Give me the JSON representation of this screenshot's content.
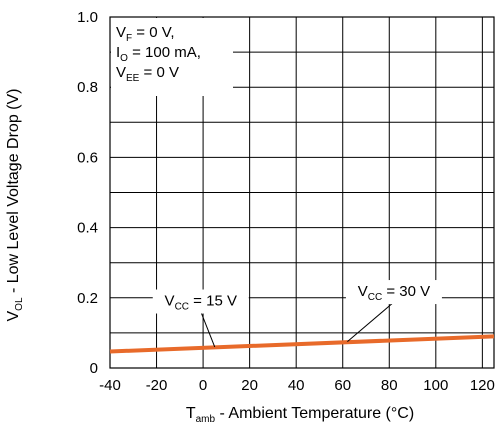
{
  "chart_data": {
    "type": "line",
    "xlabel": {
      "main": "T",
      "sub": "amb",
      "rest": " - Ambient Temperature (°C)"
    },
    "ylabel": {
      "main": "V",
      "sub": "OL",
      "rest": " - Low Level Voltage Drop (V)"
    },
    "xlim": [
      -40,
      125
    ],
    "ylim": [
      0,
      1.0
    ],
    "x_ticks": [
      -40,
      -20,
      0,
      20,
      40,
      60,
      80,
      100,
      120
    ],
    "y_ticks": [
      0,
      0.2,
      0.4,
      0.6,
      0.8,
      1.0
    ],
    "x_tick_labels": [
      "-40",
      "-20",
      "0",
      "20",
      "40",
      "60",
      "80",
      "100",
      "120"
    ],
    "y_tick_labels": [
      "0",
      "0.2",
      "0.4",
      "0.6",
      "0.8",
      "1.0"
    ],
    "grid": true,
    "series": [
      {
        "x": [
          -40,
          125
        ],
        "y": [
          0.047,
          0.09
        ],
        "color": "#e86a2a"
      }
    ],
    "conditions": [
      {
        "main": "V",
        "sub": "F",
        "rest": " = 0 V,"
      },
      {
        "main": "I",
        "sub": "O",
        "rest": " = 100 mA,"
      },
      {
        "main": "V",
        "sub": "EE",
        "rest": " = 0 V"
      }
    ],
    "annotations": [
      {
        "main": "V",
        "sub": "CC",
        "rest": " = 15 V",
        "at_x": -1,
        "at_y": 0.178,
        "target_x": 5,
        "target_y": 0.06
      },
      {
        "main": "V",
        "sub": "CC",
        "rest": " = 30 V",
        "at_x": 82,
        "at_y": 0.205,
        "target_x": 62,
        "target_y": 0.075
      }
    ]
  }
}
